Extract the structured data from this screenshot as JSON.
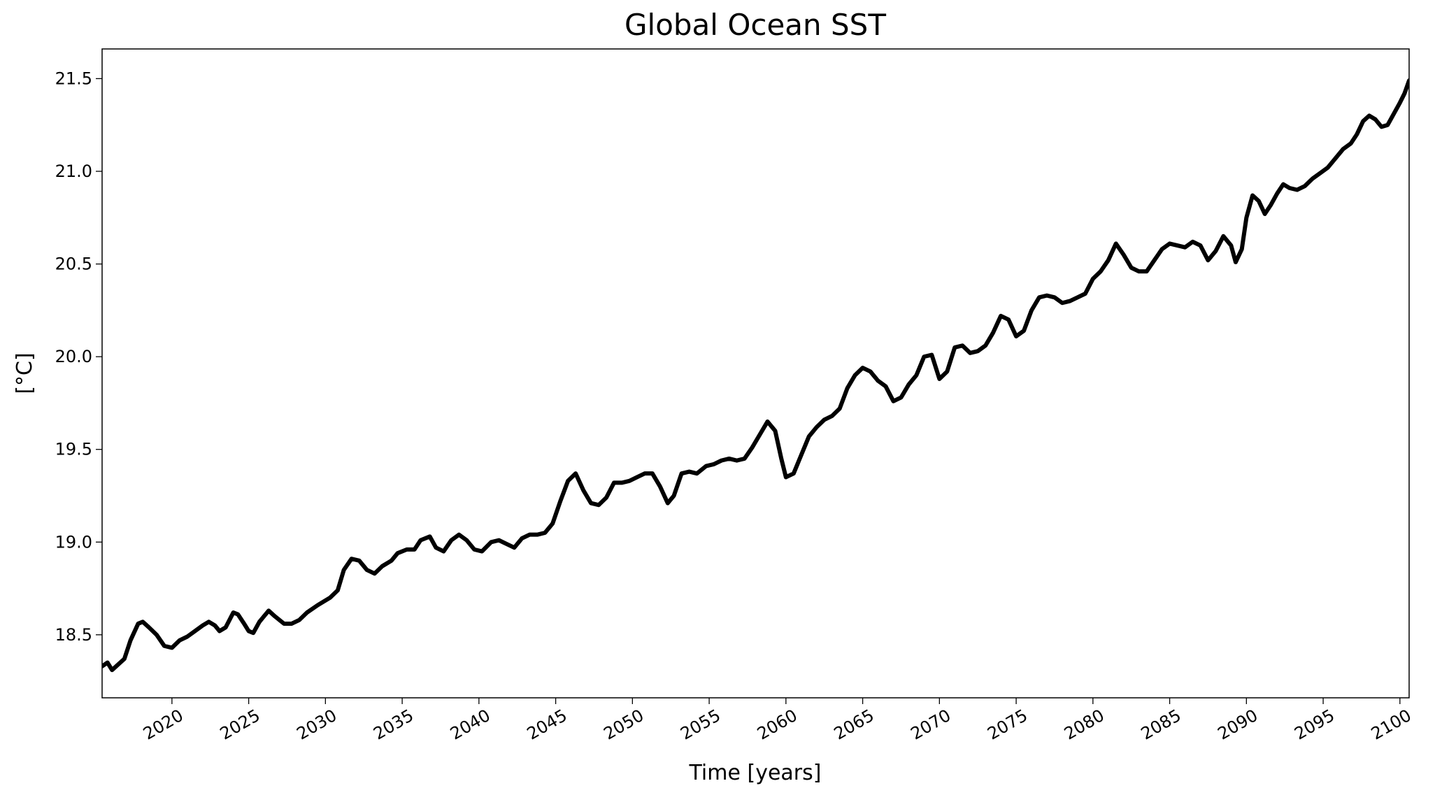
{
  "chart_data": {
    "type": "line",
    "title": "Global Ocean SST",
    "xlabel": "Time [years]",
    "ylabel": "[°C]",
    "x": [
      2015.45,
      2015.8,
      2016.1,
      2016.5,
      2016.9,
      2017.3,
      2017.8,
      2018.1,
      2018.5,
      2019.0,
      2019.5,
      2020.0,
      2020.5,
      2021.0,
      2021.5,
      2022.0,
      2022.4,
      2022.8,
      2023.1,
      2023.5,
      2024.0,
      2024.3,
      2024.7,
      2025.0,
      2025.3,
      2025.7,
      2026.3,
      2026.7,
      2027.3,
      2027.8,
      2028.3,
      2028.8,
      2029.5,
      2030.3,
      2030.8,
      2031.2,
      2031.7,
      2032.2,
      2032.7,
      2033.2,
      2033.7,
      2034.3,
      2034.7,
      2035.3,
      2035.8,
      2036.2,
      2036.8,
      2037.2,
      2037.7,
      2038.2,
      2038.7,
      2039.2,
      2039.7,
      2040.2,
      2040.8,
      2041.3,
      2041.8,
      2042.3,
      2042.8,
      2043.3,
      2043.8,
      2044.3,
      2044.8,
      2045.3,
      2045.8,
      2046.3,
      2046.8,
      2047.3,
      2047.8,
      2048.3,
      2048.8,
      2049.3,
      2049.8,
      2050.3,
      2050.8,
      2051.3,
      2051.8,
      2052.3,
      2052.7,
      2053.2,
      2053.7,
      2054.2,
      2054.8,
      2055.3,
      2055.8,
      2056.3,
      2056.8,
      2057.3,
      2057.8,
      2058.3,
      2058.8,
      2059.3,
      2059.7,
      2060.0,
      2060.5,
      2061.0,
      2061.5,
      2062.0,
      2062.5,
      2063.0,
      2063.5,
      2064.0,
      2064.5,
      2065.0,
      2065.5,
      2066.0,
      2066.5,
      2067.0,
      2067.5,
      2068.0,
      2068.5,
      2069.0,
      2069.5,
      2070.0,
      2070.5,
      2071.0,
      2071.5,
      2072.0,
      2072.5,
      2073.0,
      2073.5,
      2074.0,
      2074.5,
      2075.0,
      2075.5,
      2076.0,
      2076.5,
      2077.0,
      2077.5,
      2078.0,
      2078.5,
      2079.0,
      2079.5,
      2080.0,
      2080.5,
      2081.0,
      2081.5,
      2082.0,
      2082.5,
      2083.0,
      2083.5,
      2084.0,
      2084.5,
      2085.0,
      2085.5,
      2086.0,
      2086.5,
      2087.0,
      2087.5,
      2088.0,
      2088.5,
      2089.0,
      2089.3,
      2089.7,
      2090.0,
      2090.4,
      2090.8,
      2091.2,
      2091.6,
      2092.0,
      2092.4,
      2092.8,
      2093.3,
      2093.8,
      2094.3,
      2094.8,
      2095.3,
      2095.8,
      2096.3,
      2096.8,
      2097.2,
      2097.6,
      2098.0,
      2098.4,
      2098.8,
      2099.2,
      2099.6,
      2100.0,
      2100.3,
      2100.6
    ],
    "series": [
      {
        "color": "#000000",
        "values": [
          18.33,
          18.35,
          18.31,
          18.34,
          18.37,
          18.47,
          18.56,
          18.57,
          18.54,
          18.5,
          18.44,
          18.43,
          18.47,
          18.49,
          18.52,
          18.55,
          18.57,
          18.55,
          18.52,
          18.54,
          18.62,
          18.61,
          18.56,
          18.52,
          18.51,
          18.57,
          18.63,
          18.6,
          18.56,
          18.56,
          18.58,
          18.62,
          18.66,
          18.7,
          18.74,
          18.85,
          18.91,
          18.9,
          18.85,
          18.83,
          18.87,
          18.9,
          18.94,
          18.96,
          18.96,
          19.01,
          19.03,
          18.97,
          18.95,
          19.01,
          19.04,
          19.01,
          18.96,
          18.95,
          19.0,
          19.01,
          18.99,
          18.97,
          19.02,
          19.04,
          19.04,
          19.05,
          19.1,
          19.22,
          19.33,
          19.37,
          19.28,
          19.21,
          19.2,
          19.24,
          19.32,
          19.32,
          19.33,
          19.35,
          19.37,
          19.37,
          19.3,
          19.21,
          19.25,
          19.37,
          19.38,
          19.37,
          19.41,
          19.42,
          19.44,
          19.45,
          19.44,
          19.45,
          19.51,
          19.58,
          19.65,
          19.6,
          19.45,
          19.35,
          19.37,
          19.47,
          19.57,
          19.62,
          19.66,
          19.68,
          19.72,
          19.83,
          19.9,
          19.94,
          19.92,
          19.87,
          19.84,
          19.76,
          19.78,
          19.85,
          19.9,
          20.0,
          20.01,
          19.88,
          19.92,
          20.05,
          20.06,
          20.02,
          20.03,
          20.06,
          20.13,
          20.22,
          20.2,
          20.11,
          20.14,
          20.25,
          20.32,
          20.33,
          20.32,
          20.29,
          20.3,
          20.32,
          20.34,
          20.42,
          20.46,
          20.52,
          20.61,
          20.55,
          20.48,
          20.46,
          20.46,
          20.52,
          20.58,
          20.61,
          20.6,
          20.59,
          20.62,
          20.6,
          20.52,
          20.57,
          20.65,
          20.6,
          20.51,
          20.58,
          20.75,
          20.87,
          20.84,
          20.77,
          20.82,
          20.88,
          20.93,
          20.91,
          20.9,
          20.92,
          20.96,
          20.99,
          21.02,
          21.07,
          21.12,
          21.15,
          21.2,
          21.27,
          21.3,
          21.28,
          21.24,
          21.25,
          21.31,
          21.37,
          21.42,
          21.49
        ]
      }
    ],
    "xlim": [
      2015.45,
      2100.6
    ],
    "ylim": [
      18.16,
      21.66
    ],
    "xticks": [
      2020,
      2025,
      2030,
      2035,
      2040,
      2045,
      2050,
      2055,
      2060,
      2065,
      2070,
      2075,
      2080,
      2085,
      2090,
      2095,
      2100
    ],
    "yticks": [
      18.5,
      {
        "value": 19,
        "label": "19.0"
      },
      19.5,
      {
        "value": 20,
        "label": "20.0"
      },
      20.5,
      {
        "value": 21,
        "label": "21.0"
      },
      21.5
    ]
  }
}
